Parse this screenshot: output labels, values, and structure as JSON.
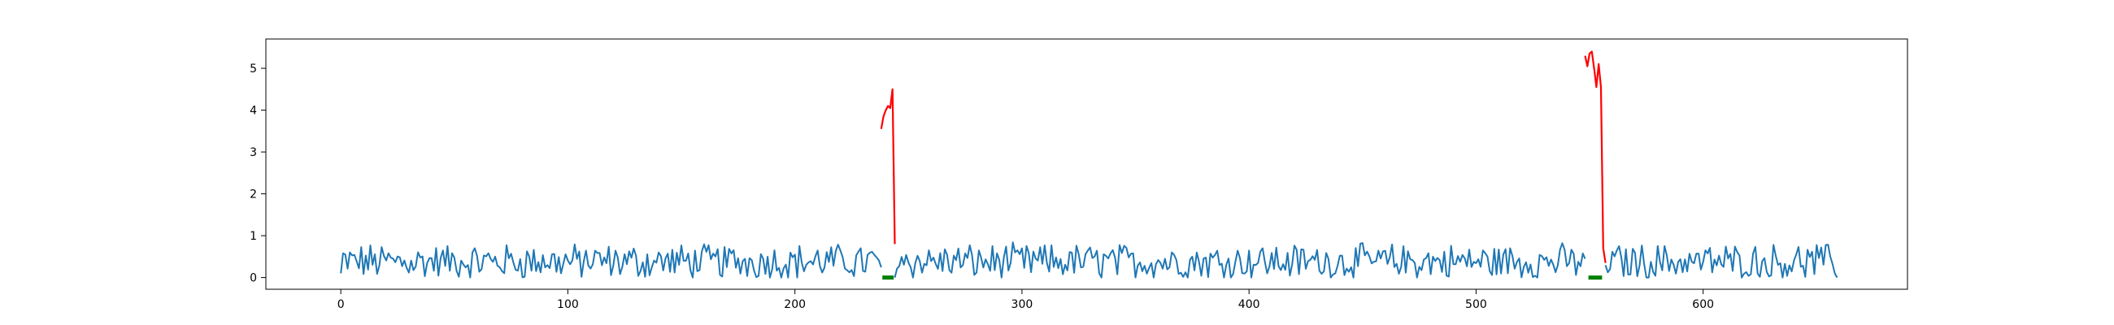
{
  "chart_data": {
    "type": "line",
    "title": "",
    "xlabel": "",
    "ylabel": "",
    "xlim": [
      -33,
      690
    ],
    "ylim": [
      -0.28,
      5.7
    ],
    "xticks": [
      0,
      100,
      200,
      300,
      400,
      500,
      600
    ],
    "yticks": [
      0,
      1,
      2,
      3,
      4,
      5
    ],
    "grid": false,
    "legend": "none",
    "colors": {
      "baseline": "#1f77b4",
      "anomaly": "#ff0000",
      "marker": "#008000"
    },
    "baseline_length": 660,
    "baseline_range": [
      0.0,
      0.85
    ],
    "series": [
      {
        "role": "anomaly",
        "x": [
          238,
          239,
          240,
          241,
          242,
          243,
          244
        ],
        "values": [
          3.55,
          3.85,
          4.0,
          4.1,
          4.05,
          4.5,
          0.8
        ]
      },
      {
        "role": "anomaly",
        "x": [
          548,
          549,
          550,
          551,
          552,
          553,
          554,
          555,
          556,
          557
        ],
        "values": [
          5.3,
          5.05,
          5.35,
          5.4,
          5.0,
          4.55,
          5.1,
          4.55,
          0.7,
          0.35
        ]
      }
    ],
    "markers": [
      {
        "x_start": 238.5,
        "x_end": 243.5,
        "y": 0.0
      },
      {
        "x_start": 549.5,
        "x_end": 555.5,
        "y": 0.0
      }
    ]
  }
}
